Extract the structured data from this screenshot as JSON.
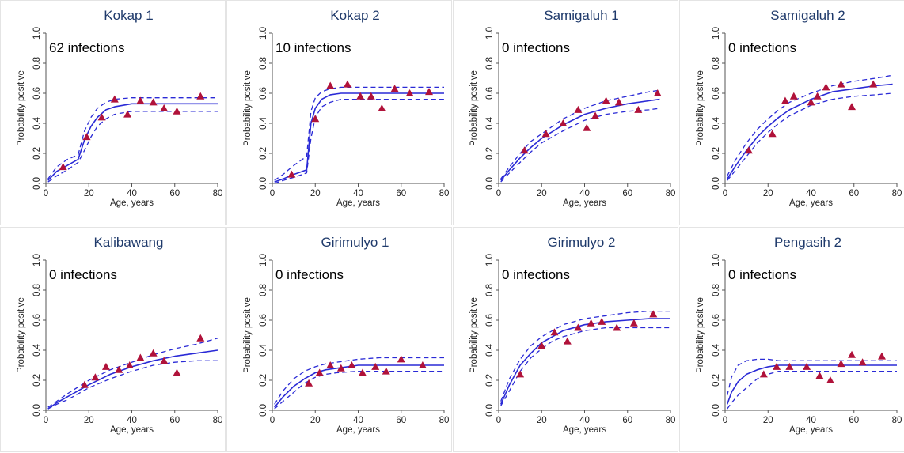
{
  "colors": {
    "fit": "#2a2ad6",
    "ci": "#2a2ad6",
    "marker": "#b0123a",
    "title": "#1f3a6b",
    "axis": "#555555"
  },
  "chart_data": [
    {
      "type": "scatter",
      "title": "Kokap 1",
      "annotation": "62 infections",
      "xlabel": "Age, years",
      "ylabel": "Probability positive",
      "xlim": [
        0,
        80
      ],
      "ylim": [
        0,
        1
      ],
      "xticks": [
        0,
        20,
        40,
        60,
        80
      ],
      "yticks": [
        "0.0",
        "0.2",
        "0.4",
        "0.6",
        "0.8",
        "1.0"
      ],
      "observed": {
        "x": [
          8,
          19,
          26,
          32,
          38,
          44,
          50,
          55,
          61,
          72
        ],
        "y": [
          0.11,
          0.31,
          0.44,
          0.56,
          0.46,
          0.55,
          0.54,
          0.5,
          0.48,
          0.58
        ]
      },
      "fit": {
        "x": [
          1,
          5,
          10,
          15,
          18,
          21,
          24,
          28,
          32,
          40,
          50,
          60,
          70,
          80
        ],
        "y": [
          0.02,
          0.08,
          0.12,
          0.16,
          0.29,
          0.38,
          0.44,
          0.49,
          0.51,
          0.53,
          0.53,
          0.53,
          0.53,
          0.53
        ]
      },
      "ci_lower": {
        "x": [
          1,
          5,
          10,
          15,
          18,
          21,
          24,
          28,
          32,
          40,
          50,
          60,
          70,
          80
        ],
        "y": [
          0.01,
          0.05,
          0.09,
          0.14,
          0.22,
          0.31,
          0.38,
          0.43,
          0.46,
          0.48,
          0.48,
          0.48,
          0.48,
          0.48
        ]
      },
      "ci_upper": {
        "x": [
          1,
          5,
          10,
          15,
          18,
          21,
          24,
          28,
          32,
          40,
          50,
          60,
          70,
          80
        ],
        "y": [
          0.03,
          0.11,
          0.16,
          0.19,
          0.35,
          0.44,
          0.5,
          0.54,
          0.56,
          0.57,
          0.57,
          0.57,
          0.57,
          0.57
        ]
      }
    },
    {
      "type": "scatter",
      "title": "Kokap 2",
      "annotation": "10 infections",
      "xlabel": "Age, years",
      "ylabel": "Probability positive",
      "xlim": [
        0,
        80
      ],
      "ylim": [
        0,
        1
      ],
      "xticks": [
        0,
        20,
        40,
        60,
        80
      ],
      "yticks": [
        "0.0",
        "0.2",
        "0.4",
        "0.6",
        "0.8",
        "1.0"
      ],
      "observed": {
        "x": [
          9,
          20,
          27,
          35,
          41,
          46,
          51,
          57,
          64,
          73
        ],
        "y": [
          0.06,
          0.43,
          0.65,
          0.66,
          0.58,
          0.58,
          0.5,
          0.63,
          0.6,
          0.61
        ]
      },
      "fit": {
        "x": [
          1,
          5,
          10,
          16,
          18,
          20,
          23,
          27,
          32,
          40,
          50,
          60,
          70,
          80
        ],
        "y": [
          0.01,
          0.03,
          0.06,
          0.09,
          0.4,
          0.5,
          0.56,
          0.59,
          0.6,
          0.6,
          0.6,
          0.6,
          0.6,
          0.6
        ]
      },
      "ci_lower": {
        "x": [
          1,
          5,
          10,
          16,
          18,
          20,
          23,
          27,
          32,
          40,
          50,
          60,
          70,
          80
        ],
        "y": [
          0.0,
          0.02,
          0.04,
          0.07,
          0.3,
          0.44,
          0.51,
          0.54,
          0.56,
          0.56,
          0.56,
          0.56,
          0.56,
          0.56
        ]
      },
      "ci_upper": {
        "x": [
          1,
          5,
          10,
          16,
          18,
          20,
          23,
          27,
          32,
          40,
          50,
          60,
          70,
          80
        ],
        "y": [
          0.02,
          0.06,
          0.12,
          0.18,
          0.48,
          0.57,
          0.61,
          0.63,
          0.64,
          0.64,
          0.64,
          0.64,
          0.64,
          0.64
        ]
      }
    },
    {
      "type": "scatter",
      "title": "Samigaluh 1",
      "annotation": "0 infections",
      "xlabel": "Age, years",
      "ylabel": "Probability positive",
      "xlim": [
        0,
        80
      ],
      "ylim": [
        0,
        1
      ],
      "xticks": [
        0,
        20,
        40,
        60,
        80
      ],
      "yticks": [
        "0.0",
        "0.2",
        "0.4",
        "0.6",
        "0.8",
        "1.0"
      ],
      "observed": {
        "x": [
          12,
          22,
          30,
          37,
          41,
          45,
          50,
          56,
          65,
          74
        ],
        "y": [
          0.22,
          0.33,
          0.4,
          0.49,
          0.37,
          0.45,
          0.55,
          0.54,
          0.49,
          0.6
        ]
      },
      "fit": {
        "x": [
          1,
          5,
          10,
          15,
          20,
          30,
          40,
          50,
          60,
          70,
          75
        ],
        "y": [
          0.02,
          0.09,
          0.17,
          0.24,
          0.3,
          0.39,
          0.46,
          0.5,
          0.53,
          0.55,
          0.56
        ]
      },
      "ci_lower": {
        "x": [
          1,
          5,
          10,
          15,
          20,
          30,
          40,
          50,
          60,
          70,
          75
        ],
        "y": [
          0.01,
          0.07,
          0.14,
          0.21,
          0.27,
          0.35,
          0.42,
          0.46,
          0.48,
          0.49,
          0.5
        ]
      },
      "ci_upper": {
        "x": [
          1,
          5,
          10,
          15,
          20,
          30,
          40,
          50,
          60,
          70,
          75
        ],
        "y": [
          0.03,
          0.11,
          0.2,
          0.28,
          0.33,
          0.43,
          0.5,
          0.55,
          0.58,
          0.61,
          0.62
        ]
      }
    },
    {
      "type": "scatter",
      "title": "Samigaluh 2",
      "annotation": "0 infections",
      "xlabel": "Age, years",
      "ylabel": "Probability positive",
      "xlim": [
        0,
        80
      ],
      "ylim": [
        0,
        1
      ],
      "xticks": [
        0,
        20,
        40,
        60,
        80
      ],
      "yticks": [
        "0.0",
        "0.2",
        "0.4",
        "0.6",
        "0.8",
        "1.0"
      ],
      "observed": {
        "x": [
          11,
          22,
          28,
          32,
          40,
          43,
          47,
          54,
          59,
          69
        ],
        "y": [
          0.22,
          0.33,
          0.55,
          0.58,
          0.54,
          0.58,
          0.64,
          0.66,
          0.51,
          0.66
        ]
      },
      "fit": {
        "x": [
          1,
          5,
          10,
          15,
          20,
          25,
          30,
          40,
          50,
          60,
          70,
          78
        ],
        "y": [
          0.03,
          0.12,
          0.22,
          0.31,
          0.38,
          0.44,
          0.49,
          0.56,
          0.61,
          0.63,
          0.65,
          0.66
        ]
      },
      "ci_lower": {
        "x": [
          1,
          5,
          10,
          15,
          20,
          25,
          30,
          40,
          50,
          60,
          70,
          78
        ],
        "y": [
          0.02,
          0.09,
          0.18,
          0.27,
          0.34,
          0.4,
          0.45,
          0.52,
          0.56,
          0.58,
          0.59,
          0.6
        ]
      },
      "ci_upper": {
        "x": [
          1,
          5,
          10,
          15,
          20,
          25,
          30,
          40,
          50,
          60,
          70,
          78
        ],
        "y": [
          0.05,
          0.16,
          0.27,
          0.36,
          0.43,
          0.49,
          0.54,
          0.6,
          0.65,
          0.68,
          0.7,
          0.72
        ]
      }
    },
    {
      "type": "scatter",
      "title": "Kalibawang",
      "annotation": "0 infections",
      "xlabel": "Age, years",
      "ylabel": "Probability positive",
      "xlim": [
        0,
        80
      ],
      "ylim": [
        0,
        1
      ],
      "xticks": [
        0,
        20,
        40,
        60,
        80
      ],
      "yticks": [
        "0.0",
        "0.2",
        "0.4",
        "0.6",
        "0.8",
        "1.0"
      ],
      "observed": {
        "x": [
          18,
          23,
          28,
          34,
          39,
          44,
          50,
          55,
          61,
          72
        ],
        "y": [
          0.17,
          0.22,
          0.29,
          0.27,
          0.3,
          0.35,
          0.38,
          0.33,
          0.25,
          0.48
        ]
      },
      "fit": {
        "x": [
          1,
          5,
          10,
          20,
          30,
          40,
          50,
          60,
          70,
          80
        ],
        "y": [
          0.01,
          0.05,
          0.09,
          0.17,
          0.24,
          0.29,
          0.33,
          0.36,
          0.38,
          0.4
        ]
      },
      "ci_lower": {
        "x": [
          1,
          5,
          10,
          20,
          30,
          40,
          50,
          60,
          70,
          80
        ],
        "y": [
          0.01,
          0.04,
          0.07,
          0.15,
          0.21,
          0.26,
          0.3,
          0.32,
          0.33,
          0.33
        ]
      },
      "ci_upper": {
        "x": [
          1,
          5,
          10,
          20,
          30,
          40,
          50,
          60,
          70,
          80
        ],
        "y": [
          0.02,
          0.06,
          0.11,
          0.2,
          0.27,
          0.32,
          0.37,
          0.41,
          0.44,
          0.48
        ]
      }
    },
    {
      "type": "scatter",
      "title": "Girimulyo 1",
      "annotation": "0 infections",
      "xlabel": "Age, years",
      "ylabel": "Probability positive",
      "xlim": [
        0,
        80
      ],
      "ylim": [
        0,
        1
      ],
      "xticks": [
        0,
        20,
        40,
        60,
        80
      ],
      "yticks": [
        "0.0",
        "0.2",
        "0.4",
        "0.6",
        "0.8",
        "1.0"
      ],
      "observed": {
        "x": [
          17,
          22,
          27,
          32,
          37,
          42,
          48,
          53,
          60,
          70
        ],
        "y": [
          0.18,
          0.25,
          0.3,
          0.28,
          0.3,
          0.25,
          0.29,
          0.26,
          0.34,
          0.3
        ]
      },
      "fit": {
        "x": [
          1,
          5,
          10,
          15,
          20,
          25,
          30,
          40,
          50,
          60,
          70,
          80
        ],
        "y": [
          0.02,
          0.09,
          0.16,
          0.21,
          0.25,
          0.27,
          0.28,
          0.3,
          0.3,
          0.3,
          0.3,
          0.3
        ]
      },
      "ci_lower": {
        "x": [
          1,
          5,
          10,
          15,
          20,
          25,
          30,
          40,
          50,
          60,
          70,
          80
        ],
        "y": [
          0.01,
          0.06,
          0.12,
          0.18,
          0.22,
          0.24,
          0.25,
          0.26,
          0.26,
          0.26,
          0.26,
          0.26
        ]
      },
      "ci_upper": {
        "x": [
          1,
          5,
          10,
          15,
          20,
          25,
          30,
          40,
          50,
          60,
          70,
          80
        ],
        "y": [
          0.04,
          0.13,
          0.21,
          0.26,
          0.29,
          0.31,
          0.32,
          0.34,
          0.35,
          0.35,
          0.35,
          0.35
        ]
      }
    },
    {
      "type": "scatter",
      "title": "Girimulyo 2",
      "annotation": "0 infections",
      "xlabel": "Age, years",
      "ylabel": "Probability positive",
      "xlim": [
        0,
        80
      ],
      "ylim": [
        0,
        1
      ],
      "xticks": [
        0,
        20,
        40,
        60,
        80
      ],
      "yticks": [
        "0.0",
        "0.2",
        "0.4",
        "0.6",
        "0.8",
        "1.0"
      ],
      "observed": {
        "x": [
          10,
          20,
          26,
          32,
          37,
          43,
          48,
          55,
          63,
          72
        ],
        "y": [
          0.24,
          0.43,
          0.52,
          0.46,
          0.55,
          0.58,
          0.59,
          0.55,
          0.58,
          0.64
        ]
      },
      "fit": {
        "x": [
          1,
          5,
          10,
          15,
          20,
          25,
          30,
          40,
          50,
          60,
          70,
          80
        ],
        "y": [
          0.04,
          0.17,
          0.3,
          0.38,
          0.45,
          0.49,
          0.53,
          0.57,
          0.59,
          0.6,
          0.61,
          0.61
        ]
      },
      "ci_lower": {
        "x": [
          1,
          5,
          10,
          15,
          20,
          25,
          30,
          40,
          50,
          60,
          70,
          80
        ],
        "y": [
          0.03,
          0.13,
          0.26,
          0.35,
          0.41,
          0.46,
          0.49,
          0.53,
          0.55,
          0.55,
          0.55,
          0.55
        ]
      },
      "ci_upper": {
        "x": [
          1,
          5,
          10,
          15,
          20,
          25,
          30,
          40,
          50,
          60,
          70,
          80
        ],
        "y": [
          0.06,
          0.21,
          0.34,
          0.43,
          0.49,
          0.53,
          0.57,
          0.61,
          0.63,
          0.65,
          0.66,
          0.66
        ]
      }
    },
    {
      "type": "scatter",
      "title": "Pengasih 2",
      "annotation": "0 infections",
      "xlabel": "Age, years",
      "ylabel": "Probability positive",
      "xlim": [
        0,
        80
      ],
      "ylim": [
        0,
        1
      ],
      "xticks": [
        0,
        20,
        40,
        60,
        80
      ],
      "yticks": [
        "0.0",
        "0.2",
        "0.4",
        "0.6",
        "0.8",
        "1.0"
      ],
      "observed": {
        "x": [
          18,
          24,
          30,
          38,
          44,
          49,
          54,
          59,
          64,
          73
        ],
        "y": [
          0.24,
          0.29,
          0.29,
          0.29,
          0.23,
          0.2,
          0.31,
          0.37,
          0.32,
          0.36
        ]
      },
      "fit": {
        "x": [
          1,
          3,
          6,
          10,
          15,
          20,
          25,
          30,
          40,
          50,
          60,
          70,
          80
        ],
        "y": [
          0.04,
          0.12,
          0.19,
          0.24,
          0.27,
          0.29,
          0.3,
          0.3,
          0.3,
          0.3,
          0.3,
          0.3,
          0.3
        ]
      },
      "ci_lower": {
        "x": [
          1,
          3,
          6,
          10,
          15,
          20,
          25,
          30,
          40,
          50,
          60,
          70,
          80
        ],
        "y": [
          0.01,
          0.05,
          0.1,
          0.15,
          0.21,
          0.24,
          0.26,
          0.26,
          0.26,
          0.26,
          0.26,
          0.26,
          0.26
        ]
      },
      "ci_upper": {
        "x": [
          1,
          3,
          6,
          10,
          15,
          20,
          25,
          30,
          40,
          50,
          60,
          70,
          80
        ],
        "y": [
          0.1,
          0.22,
          0.3,
          0.33,
          0.34,
          0.34,
          0.33,
          0.33,
          0.33,
          0.33,
          0.33,
          0.33,
          0.33
        ]
      }
    }
  ]
}
